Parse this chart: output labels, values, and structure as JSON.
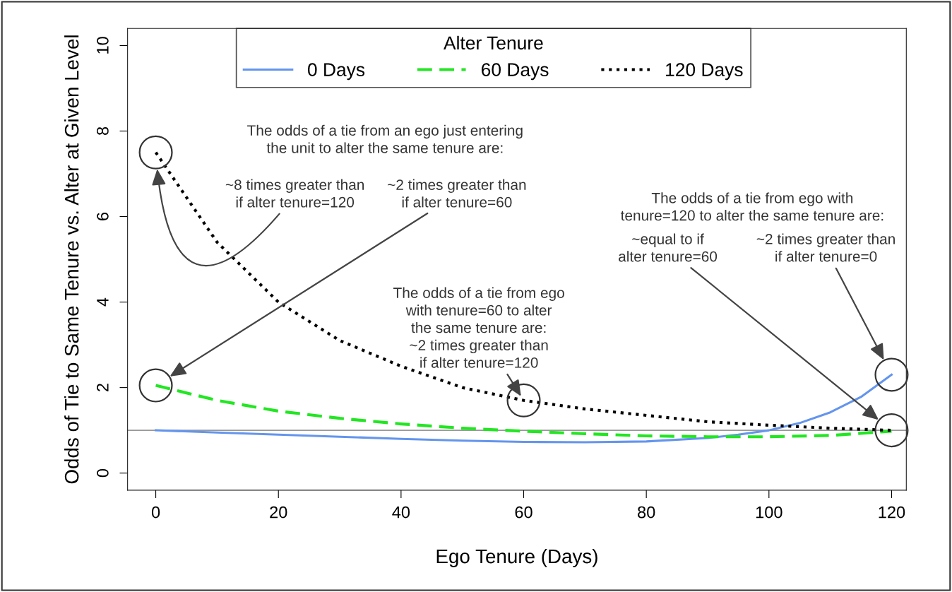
{
  "chart_data": {
    "type": "line",
    "xlabel": "Ego Tenure (Days)",
    "ylabel": "Odds of Tie to Same Tenure vs. Alter at Given Level",
    "x": [
      0,
      10,
      20,
      30,
      40,
      50,
      60,
      70,
      80,
      90,
      100,
      110,
      120
    ],
    "series": [
      {
        "name": "0 Days",
        "color": "#6495ed",
        "line_style": "solid",
        "x": [
          0,
          10,
          20,
          30,
          40,
          50,
          60,
          70,
          80,
          90,
          95,
          100,
          105,
          110,
          115,
          120
        ],
        "values": [
          1.0,
          0.95,
          0.9,
          0.85,
          0.8,
          0.76,
          0.73,
          0.72,
          0.74,
          0.82,
          0.9,
          1.0,
          1.17,
          1.42,
          1.78,
          2.3
        ]
      },
      {
        "name": "60 Days",
        "color": "#22e622",
        "line_style": "dashed",
        "values": [
          2.05,
          1.7,
          1.45,
          1.28,
          1.15,
          1.05,
          0.98,
          0.92,
          0.87,
          0.85,
          0.85,
          0.88,
          0.98
        ]
      },
      {
        "name": "120 Days",
        "color": "#000000",
        "line_style": "dotted",
        "values": [
          7.5,
          5.4,
          4.0,
          3.1,
          2.5,
          2.0,
          1.7,
          1.5,
          1.35,
          1.2,
          1.12,
          1.05,
          1.0
        ]
      }
    ],
    "legend_title": "Alter Tenure",
    "legend": "top",
    "xlim": [
      -4.6,
      122.4
    ],
    "ylim": [
      -0.4,
      10.4
    ],
    "xticks": [
      0,
      20,
      40,
      60,
      80,
      100,
      120
    ],
    "yticks": [
      0,
      2,
      4,
      6,
      8,
      10
    ],
    "grid": false,
    "ref_lines": [
      {
        "axis": "y",
        "value": 1,
        "color": "#999999"
      }
    ],
    "annotations": [
      "The odds of a tie from an ego just entering\nthe unit to alter the same tenure are:",
      "~8 times greater than\nif alter tenure=120",
      "~2 times greater than\nif alter tenure=60",
      {
        "text": "The odds of a tie from ego\nwith tenure=60 to alter\nthe same tenure are:\n~2 times greater than\nif alter tenure=120",
        "x": 60,
        "y": 1.7
      },
      "The odds of a tie from ego with\ntenure=120 to alter the same tenure are:",
      "~equal to if\nalter tenure=60",
      "~2 times greater than\nif alter tenure=0"
    ]
  }
}
